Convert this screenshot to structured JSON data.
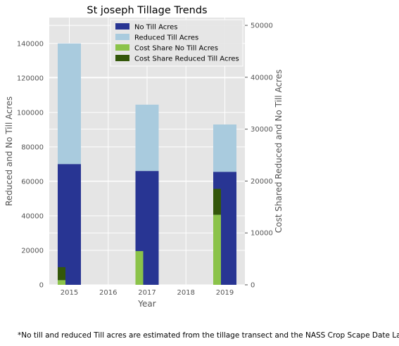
{
  "chart_data": {
    "type": "bar",
    "title": "St joseph Tillage Trends",
    "xlabel": "Year",
    "ylabel": "Reduced and No Till Acres",
    "y2label": "Cost Shared Reduced and No Till Acres",
    "x_ticks": [
      "2015",
      "2016",
      "2017",
      "2018",
      "2019"
    ],
    "ylim": [
      0,
      155000
    ],
    "y2lim": [
      0,
      51500
    ],
    "y_ticks": [
      0,
      20000,
      40000,
      60000,
      80000,
      100000,
      120000,
      140000
    ],
    "y2_ticks": [
      0,
      10000,
      20000,
      30000,
      40000,
      50000
    ],
    "grid": true,
    "legend_position": "top-right",
    "years": [
      2015,
      2017,
      2019
    ],
    "series": [
      {
        "name": "No Till Acres",
        "axis": "left",
        "color": "#283593",
        "values": [
          70000,
          66000,
          65500
        ]
      },
      {
        "name": "Reduced Till Acres",
        "axis": "left",
        "stacked_on": "No Till Acres",
        "color": "#a9cbde",
        "values": [
          70000,
          38500,
          27500
        ]
      },
      {
        "name": "Cost Share No Till Acres",
        "axis": "right",
        "color": "#8bc34a",
        "values": [
          900,
          6500,
          13500
        ]
      },
      {
        "name": "Cost Share Reduced Till Acres",
        "axis": "right",
        "stacked_on": "Cost Share No Till Acres",
        "color": "#33570a",
        "values": [
          2500,
          0,
          5000
        ]
      }
    ]
  },
  "footnote": "*No till and reduced Till acres are estimated from the tillage transect and the NASS Crop Scape Date Layer."
}
